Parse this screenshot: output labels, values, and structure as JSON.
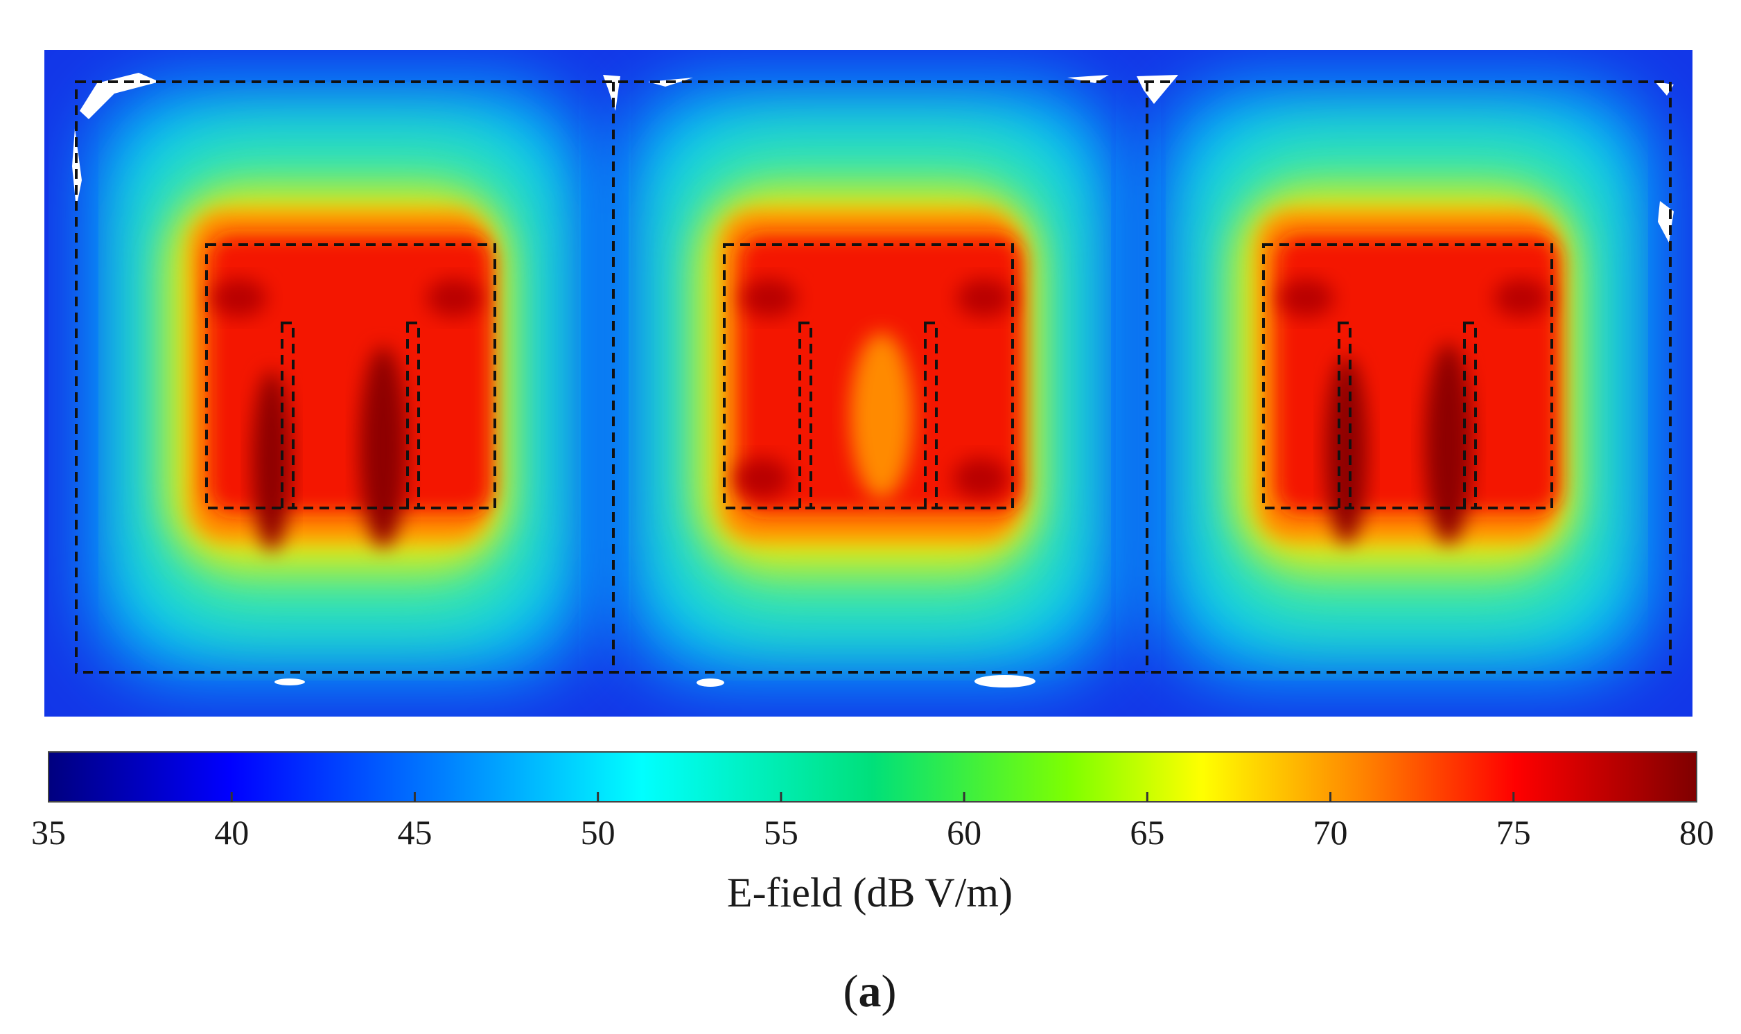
{
  "chart_data": {
    "type": "heatmap",
    "title": "",
    "colorbar": {
      "label": "E-field (dB V/m)",
      "min": 35,
      "max": 80,
      "ticks": [
        35,
        40,
        45,
        50,
        55,
        60,
        65,
        70,
        75,
        80
      ],
      "colormap": "jet",
      "stops": [
        "#00007f",
        "#0000ff",
        "#0080ff",
        "#00ffff",
        "#00e07a",
        "#7fff00",
        "#ffff00",
        "#ff8000",
        "#ff0000",
        "#7f0000"
      ]
    },
    "field_summary": {
      "outer_region_dB": [
        40,
        50
      ],
      "middle_region_dB": [
        52,
        62
      ],
      "inner_region_dB": [
        70,
        80
      ]
    },
    "rooms": 3
  },
  "figure": {
    "panel_label_open": "(",
    "panel_label_letter": "a",
    "panel_label_close": ")"
  }
}
